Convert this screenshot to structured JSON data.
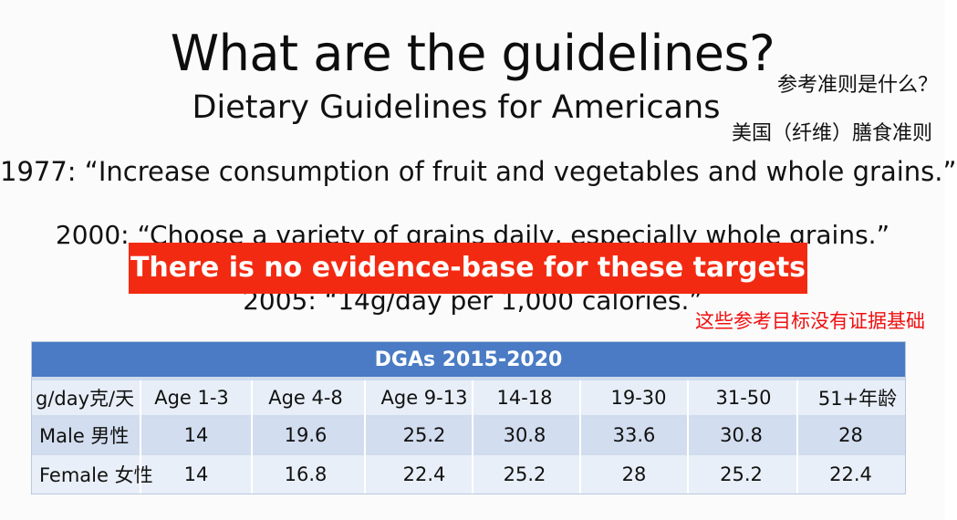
{
  "slide": {
    "title": "What are the guidelines?",
    "subtitle": "Dietary Guidelines for Americans",
    "cn_title": "参考准则是什么？",
    "cn_subtitle": "美国（纤维）膳食准则",
    "line_1977": "1977: “Increase consumption of fruit and vegetables and whole grains.”",
    "line_2000": "2000: “Choose a variety of grains daily, especially whole grains.”",
    "line_2005": "2005: “14g/day per 1,000 calories.”",
    "banner": "There is no evidence-base for these targets",
    "cn_banner": "这些参考目标没有证据基础",
    "banner_color": "#f32a12",
    "table_header_color": "#4a7bc4"
  },
  "table": {
    "header": "DGAs 2015-2020",
    "columns": [
      "g/day克/天",
      "Age 1-3",
      "Age 4-8",
      "Age 9-13",
      "14-18",
      "19-30",
      "31-50",
      "51+年龄"
    ],
    "rows": [
      {
        "label": "Male 男性",
        "values": [
          "14",
          "19.6",
          "25.2",
          "30.8",
          "33.6",
          "30.8",
          "28"
        ]
      },
      {
        "label": "Female 女性",
        "values": [
          "14",
          "16.8",
          "22.4",
          "25.2",
          "28",
          "25.2",
          "22.4"
        ]
      }
    ]
  }
}
